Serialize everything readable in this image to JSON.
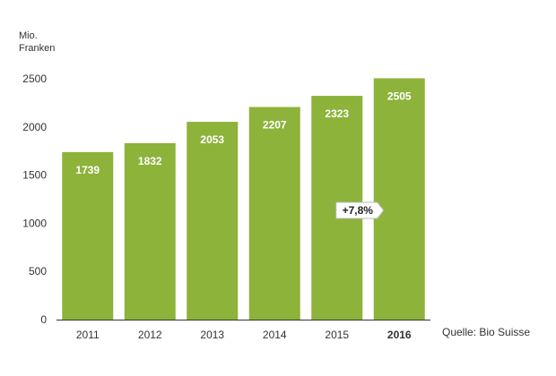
{
  "chart_data": {
    "type": "bar",
    "ylabel": "Mio.\nFranken",
    "categories": [
      "2011",
      "2012",
      "2013",
      "2014",
      "2015",
      "2016"
    ],
    "values": [
      1739,
      1832,
      2053,
      2207,
      2323,
      2505
    ],
    "ylim": [
      0,
      2500
    ],
    "yticks": [
      0,
      500,
      1000,
      1500,
      2000,
      2500
    ],
    "bold_category": "2016",
    "annotation": {
      "text": "+7,8%",
      "category": "2016"
    },
    "bar_color": "#8db33a",
    "grid": false,
    "source": "Quelle: Bio Suisse"
  }
}
